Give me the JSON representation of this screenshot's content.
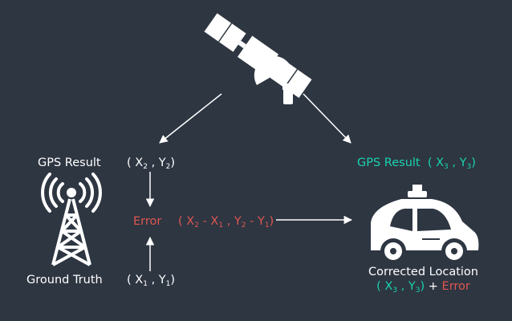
{
  "colors": {
    "background": "#2e3642",
    "white": "#ffffff",
    "teal": "#19d3ae",
    "red": "#e0564f"
  },
  "icons": [
    "satellite-icon",
    "cell-tower-icon",
    "self-driving-car-icon"
  ],
  "labels": {
    "gps_result_left": "GPS Result",
    "ground_truth": "Ground Truth",
    "error": "Error",
    "gps_result_right": "GPS Result",
    "corrected_location": "Corrected Location",
    "plus": "+"
  },
  "coords": {
    "x2": "X",
    "x2_sub": "2",
    "y2": "Y",
    "y2_sub": "2",
    "x1": "X",
    "x1_sub": "1",
    "y1": "Y",
    "y1_sub": "1",
    "x3": "X",
    "x3_sub": "3",
    "y3": "Y",
    "y3_sub": "3",
    "open": "(",
    "close": ")",
    "comma": ",",
    "minus": "-"
  }
}
